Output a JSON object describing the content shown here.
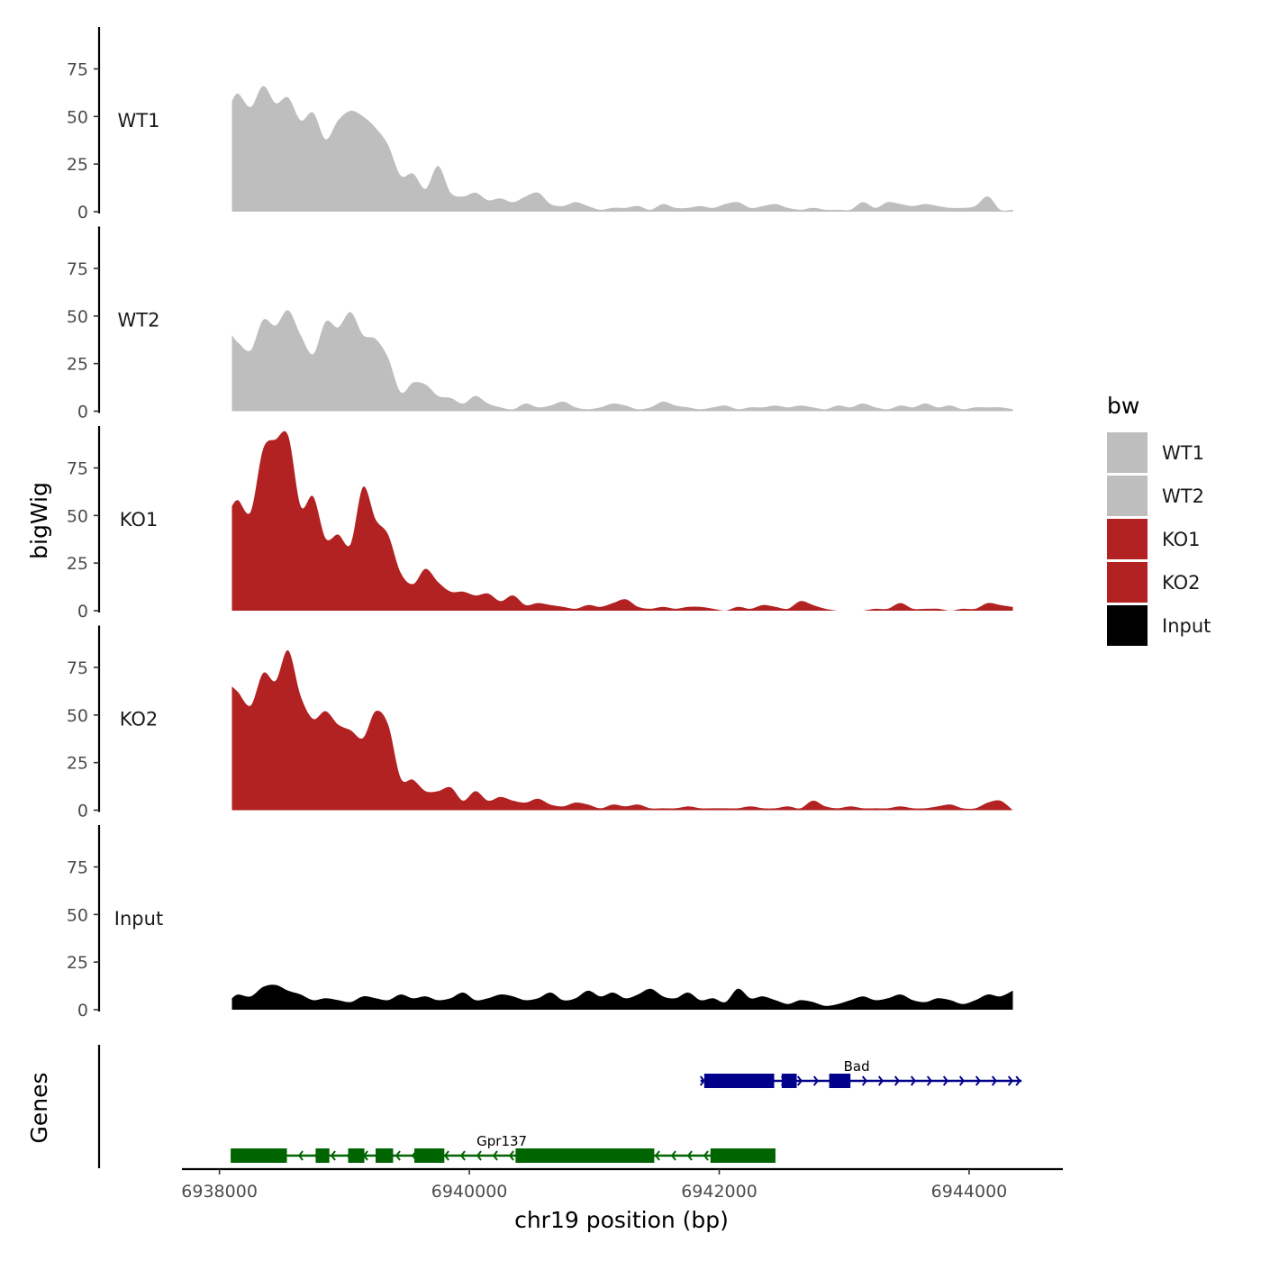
{
  "chart_data": {
    "type": "area",
    "ylabel": "bigWig",
    "genes_label": "Genes",
    "xlabel": "chr19 position (bp)",
    "x_ticks": [
      "6938000",
      "6940000",
      "6942000",
      "6944000"
    ],
    "x_tick_values": [
      6938000,
      6940000,
      6942000,
      6944000
    ],
    "xlim": [
      6937700,
      6944750
    ],
    "ylim": [
      0,
      97
    ],
    "y_ticks": [
      "0",
      "25",
      "50",
      "75"
    ],
    "y_tick_values": [
      0,
      25,
      50,
      75
    ],
    "legend": {
      "title": "bw",
      "entries": [
        {
          "label": "WT1",
          "color": "#BEBEBE"
        },
        {
          "label": "WT2",
          "color": "#BEBEBE"
        },
        {
          "label": "KO1",
          "color": "#B22222"
        },
        {
          "label": "KO2",
          "color": "#B22222"
        },
        {
          "label": "Input",
          "color": "#000000"
        }
      ]
    },
    "series": [
      {
        "name": "WT1",
        "color": "#BEBEBE",
        "x": [
          6938100,
          6938150,
          6938250,
          6938350,
          6938450,
          6938550,
          6938650,
          6938750,
          6938850,
          6938950,
          6939050,
          6939150,
          6939250,
          6939350,
          6939450,
          6939550,
          6939650,
          6939750,
          6939850,
          6939950,
          6940050,
          6940150,
          6940250,
          6940350,
          6940450,
          6940550,
          6940650,
          6940750,
          6940850,
          6940950,
          6941050,
          6941150,
          6941250,
          6941350,
          6941450,
          6941550,
          6941650,
          6941750,
          6941850,
          6941950,
          6942050,
          6942150,
          6942250,
          6942350,
          6942450,
          6942550,
          6942650,
          6942750,
          6942850,
          6942950,
          6943050,
          6943150,
          6943250,
          6943350,
          6943450,
          6943550,
          6943650,
          6943750,
          6943850,
          6943950,
          6944050,
          6944150,
          6944250,
          6944350
        ],
        "values": [
          58,
          62,
          55,
          66,
          57,
          60,
          48,
          52,
          38,
          48,
          53,
          50,
          44,
          35,
          19,
          20,
          12,
          24,
          10,
          8,
          10,
          6,
          7,
          5,
          8,
          10,
          4,
          3,
          5,
          3,
          1,
          2,
          2,
          3,
          1,
          4,
          2,
          2,
          3,
          2,
          4,
          5,
          2,
          3,
          4,
          2,
          1,
          2,
          1,
          1,
          1,
          5,
          2,
          5,
          4,
          3,
          4,
          3,
          2,
          2,
          3,
          8,
          1,
          1
        ]
      },
      {
        "name": "WT2",
        "color": "#BEBEBE",
        "x": [
          6938100,
          6938150,
          6938250,
          6938350,
          6938450,
          6938550,
          6938650,
          6938750,
          6938850,
          6938950,
          6939050,
          6939150,
          6939250,
          6939350,
          6939450,
          6939550,
          6939650,
          6939750,
          6939850,
          6939950,
          6940050,
          6940150,
          6940250,
          6940350,
          6940450,
          6940550,
          6940650,
          6940750,
          6940850,
          6940950,
          6941050,
          6941150,
          6941250,
          6941350,
          6941450,
          6941550,
          6941650,
          6941750,
          6941850,
          6941950,
          6942050,
          6942150,
          6942250,
          6942350,
          6942450,
          6942550,
          6942650,
          6942750,
          6942850,
          6942950,
          6943050,
          6943150,
          6943250,
          6943350,
          6943450,
          6943550,
          6943650,
          6943750,
          6943850,
          6943950,
          6944050,
          6944150,
          6944250,
          6944350
        ],
        "values": [
          40,
          36,
          32,
          48,
          45,
          53,
          40,
          30,
          47,
          44,
          52,
          40,
          38,
          28,
          10,
          15,
          14,
          8,
          7,
          4,
          8,
          4,
          2,
          1,
          4,
          2,
          3,
          5,
          2,
          1,
          2,
          4,
          3,
          1,
          2,
          5,
          3,
          2,
          1,
          2,
          3,
          1,
          2,
          2,
          3,
          2,
          3,
          2,
          1,
          3,
          2,
          4,
          2,
          1,
          3,
          2,
          4,
          2,
          3,
          1,
          2,
          2,
          2,
          1
        ]
      },
      {
        "name": "KO1",
        "color": "#B22222",
        "x": [
          6938100,
          6938150,
          6938250,
          6938350,
          6938450,
          6938550,
          6938650,
          6938750,
          6938850,
          6938950,
          6939050,
          6939150,
          6939250,
          6939350,
          6939450,
          6939550,
          6939650,
          6939750,
          6939850,
          6939950,
          6940050,
          6940150,
          6940250,
          6940350,
          6940450,
          6940550,
          6940650,
          6940750,
          6940850,
          6940950,
          6941050,
          6941150,
          6941250,
          6941350,
          6941450,
          6941550,
          6941650,
          6941750,
          6941850,
          6941950,
          6942050,
          6942150,
          6942250,
          6942350,
          6942450,
          6942550,
          6942650,
          6942750,
          6942850,
          6942950,
          6943050,
          6943150,
          6943250,
          6943350,
          6943450,
          6943550,
          6943650,
          6943750,
          6943850,
          6943950,
          6944050,
          6944150,
          6944250,
          6944350
        ],
        "values": [
          55,
          58,
          52,
          85,
          90,
          92,
          55,
          60,
          38,
          40,
          35,
          65,
          48,
          40,
          20,
          14,
          22,
          15,
          10,
          10,
          8,
          9,
          5,
          8,
          3,
          4,
          3,
          2,
          1,
          3,
          2,
          4,
          6,
          2,
          1,
          2,
          1,
          2,
          2,
          1,
          0,
          2,
          1,
          3,
          2,
          1,
          5,
          3,
          1,
          0,
          0,
          0,
          1,
          1,
          4,
          1,
          1,
          1,
          0,
          1,
          1,
          4,
          3,
          2
        ]
      },
      {
        "name": "KO2",
        "color": "#B22222",
        "x": [
          6938100,
          6938150,
          6938250,
          6938350,
          6938450,
          6938550,
          6938650,
          6938750,
          6938850,
          6938950,
          6939050,
          6939150,
          6939250,
          6939350,
          6939450,
          6939550,
          6939650,
          6939750,
          6939850,
          6939950,
          6940050,
          6940150,
          6940250,
          6940350,
          6940450,
          6940550,
          6940650,
          6940750,
          6940850,
          6940950,
          6941050,
          6941150,
          6941250,
          6941350,
          6941450,
          6941550,
          6941650,
          6941750,
          6941850,
          6941950,
          6942050,
          6942150,
          6942250,
          6942350,
          6942450,
          6942550,
          6942650,
          6942750,
          6942850,
          6942950,
          6943050,
          6943150,
          6943250,
          6943350,
          6943450,
          6943550,
          6943650,
          6943750,
          6943850,
          6943950,
          6944050,
          6944150,
          6944250,
          6944350
        ],
        "values": [
          65,
          62,
          55,
          72,
          68,
          84,
          60,
          48,
          52,
          45,
          42,
          38,
          52,
          45,
          17,
          16,
          10,
          10,
          12,
          5,
          10,
          5,
          7,
          5,
          4,
          6,
          3,
          2,
          4,
          3,
          1,
          3,
          2,
          3,
          1,
          1,
          1,
          2,
          1,
          1,
          1,
          1,
          2,
          1,
          1,
          2,
          1,
          5,
          2,
          1,
          2,
          1,
          1,
          1,
          2,
          1,
          1,
          2,
          3,
          1,
          1,
          4,
          5,
          0
        ]
      },
      {
        "name": "Input",
        "color": "#000000",
        "x": [
          6938100,
          6938150,
          6938250,
          6938350,
          6938450,
          6938550,
          6938650,
          6938750,
          6938850,
          6938950,
          6939050,
          6939150,
          6939250,
          6939350,
          6939450,
          6939550,
          6939650,
          6939750,
          6939850,
          6939950,
          6940050,
          6940150,
          6940250,
          6940350,
          6940450,
          6940550,
          6940650,
          6940750,
          6940850,
          6940950,
          6941050,
          6941150,
          6941250,
          6941350,
          6941450,
          6941550,
          6941650,
          6941750,
          6941850,
          6941950,
          6942050,
          6942150,
          6942250,
          6942350,
          6942450,
          6942550,
          6942650,
          6942750,
          6942850,
          6942950,
          6943050,
          6943150,
          6943250,
          6943350,
          6943450,
          6943550,
          6943650,
          6943750,
          6943850,
          6943950,
          6944050,
          6944150,
          6944250,
          6944350
        ],
        "values": [
          6,
          8,
          7,
          12,
          13,
          10,
          8,
          5,
          6,
          5,
          4,
          7,
          6,
          5,
          8,
          6,
          7,
          5,
          6,
          9,
          5,
          6,
          8,
          7,
          5,
          6,
          9,
          5,
          6,
          10,
          7,
          9,
          6,
          8,
          11,
          7,
          6,
          9,
          5,
          6,
          4,
          11,
          6,
          7,
          5,
          3,
          5,
          4,
          2,
          3,
          5,
          7,
          5,
          6,
          8,
          5,
          4,
          6,
          5,
          3,
          5,
          8,
          7,
          10
        ]
      }
    ],
    "genes": [
      {
        "name": "Gpr137",
        "strand": "-",
        "color": "#006400",
        "start": 6938090,
        "end": 6942450,
        "exons": [
          [
            6938090,
            6938540
          ],
          [
            6938770,
            6938880
          ],
          [
            6939030,
            6939160
          ],
          [
            6939250,
            6939390
          ],
          [
            6939560,
            6939800
          ],
          [
            6940370,
            6941480
          ],
          [
            6941930,
            6942450
          ]
        ]
      },
      {
        "name": "Bad",
        "strand": "+",
        "color": "#00008B",
        "start": 6941850,
        "end": 6944420,
        "exons": [
          [
            6941880,
            6942440
          ],
          [
            6942500,
            6942620
          ],
          [
            6942880,
            6943050
          ]
        ]
      }
    ]
  }
}
